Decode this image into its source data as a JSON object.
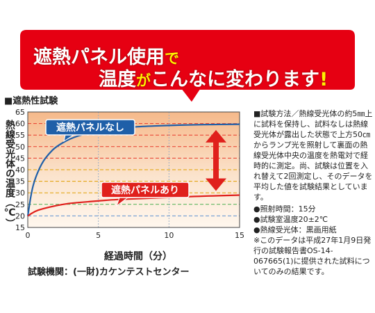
{
  "banner": {
    "line1": {
      "a": "遮熱パネル使用",
      "b": "で"
    },
    "line2": {
      "a": "温度",
      "b": "が",
      "c": "こんなに変わります",
      "d": "!"
    }
  },
  "chart_section_title": "■遮熱性試験",
  "test_org": "試験機関：(一財)カケンテストセンター",
  "notes": {
    "method": "■試験方法／熱線受光体の約5㎜上に試料を保持し、試料なしは熱線受光体が露出した状態で上方50㎝からランプ光を照射して裏面の熱線受光体中央の温度を熱電対で経時的に測定。尚、試験は位置を入れ替えて2回測定し、そのデータを平均した値を試験結果としています。",
    "items": [
      "●照射時間：15分",
      "●試験室温度20±2℃",
      "●熱線受光体：黒画用紙"
    ],
    "footnote": "※このデータは平成27年1月9日発行の試験報告書OS-14-067665(1)に提供された試料についてのみの結果です。"
  },
  "colors": {
    "banner_red": "#e60012",
    "no_panel_line": "#1f5fa8",
    "with_panel_line": "#e0201c",
    "arrow": "#e0201c"
  },
  "chart_data": {
    "type": "line",
    "title": "",
    "xlabel": "経過時間（分）",
    "ylabel": "熱線受光体の温度（℃）",
    "xlim": [
      0,
      15
    ],
    "ylim": [
      15,
      65
    ],
    "x_ticks": [
      0,
      5,
      10,
      15
    ],
    "y_ticks": [
      15,
      20,
      25,
      30,
      35,
      40,
      45,
      50,
      55,
      60,
      65
    ],
    "grid": true,
    "series": [
      {
        "name": "遮熱パネルなし",
        "x": [
          0,
          0.25,
          0.5,
          1,
          1.5,
          2,
          3,
          4,
          5,
          6,
          7,
          8,
          10,
          12,
          15
        ],
        "y": [
          20,
          30,
          36,
          43,
          47,
          50,
          53.5,
          55.5,
          57,
          57.8,
          58.3,
          58.7,
          59.2,
          59.5,
          59.7
        ]
      },
      {
        "name": "遮熱パネルあり",
        "x": [
          0,
          0.5,
          1,
          2,
          3,
          4,
          5,
          6,
          8,
          10,
          12,
          15
        ],
        "y": [
          20,
          22,
          23,
          24.5,
          25.5,
          26,
          26.5,
          27,
          27.5,
          28,
          28.5,
          29
        ]
      }
    ]
  }
}
